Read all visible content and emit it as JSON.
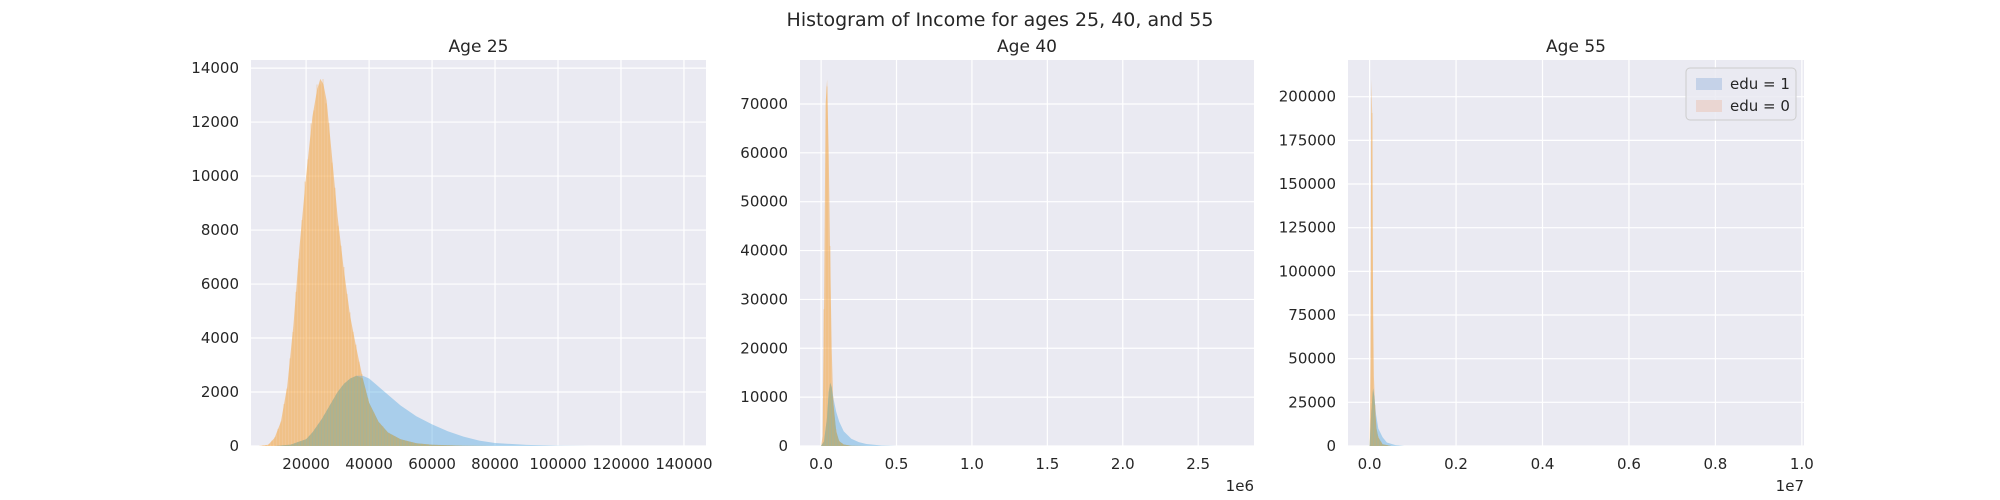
{
  "figure": {
    "title": "Histogram of Income for ages 25, 40, and 55"
  },
  "colors": {
    "background": "#ffffff",
    "plot_bg": "#eaeaf2",
    "grid": "#ffffff",
    "edu0": "#f4a84a",
    "edu1": "#5aaee3",
    "overlap": "#a8b08a",
    "legend_edu1": "#c5d2e8",
    "legend_edu0": "#ead6d2",
    "text": "#262626"
  },
  "legend": {
    "placement": "upper right",
    "entries": [
      {
        "label": "edu = 1",
        "key": "edu1"
      },
      {
        "label": "edu = 0",
        "key": "edu0"
      }
    ]
  },
  "chart_data": [
    {
      "type": "bar",
      "title": "Age 25",
      "xlabel": "",
      "ylabel": "",
      "xlim": [
        2500,
        147000
      ],
      "ylim": [
        0,
        14300
      ],
      "xticks": [
        20000,
        40000,
        60000,
        80000,
        100000,
        120000,
        140000
      ],
      "xtick_labels": [
        "20000",
        "40000",
        "60000",
        "80000",
        "100000",
        "120000",
        "140000"
      ],
      "yticks": [
        0,
        2000,
        4000,
        6000,
        8000,
        10000,
        12000,
        14000
      ],
      "ytick_labels": [
        "0",
        "2000",
        "4000",
        "6000",
        "8000",
        "10000",
        "12000",
        "14000"
      ],
      "offset_label": "",
      "grid": true,
      "legend": false,
      "series": [
        {
          "key": "edu0",
          "x": [
            5000,
            8000,
            10000,
            12000,
            14000,
            16000,
            18000,
            20000,
            22000,
            23500,
            24500,
            25500,
            26500,
            28000,
            30000,
            32000,
            34000,
            36000,
            38000,
            40000,
            43000,
            46000,
            50000,
            55000,
            60000,
            70000,
            80000
          ],
          "y": [
            0,
            50,
            300,
            900,
            2200,
            4500,
            7500,
            10000,
            12200,
            13200,
            13600,
            13400,
            12800,
            11000,
            8500,
            6500,
            4800,
            3600,
            2500,
            1600,
            900,
            500,
            250,
            100,
            50,
            10,
            0
          ]
        },
        {
          "key": "edu1",
          "x": [
            10000,
            15000,
            20000,
            22000,
            25000,
            28000,
            30000,
            32000,
            34000,
            36000,
            38000,
            40000,
            42000,
            45000,
            50000,
            55000,
            60000,
            65000,
            70000,
            75000,
            80000,
            90000,
            100000,
            110000
          ],
          "y": [
            0,
            50,
            250,
            500,
            1000,
            1600,
            2000,
            2300,
            2500,
            2600,
            2600,
            2500,
            2300,
            2000,
            1500,
            1100,
            800,
            550,
            350,
            200,
            110,
            40,
            10,
            0
          ]
        }
      ]
    },
    {
      "type": "bar",
      "title": "Age 40",
      "xlabel": "",
      "ylabel": "",
      "xlim": [
        -140000,
        2870000
      ],
      "ylim": [
        0,
        79000
      ],
      "xticks": [
        0,
        500000,
        1000000,
        1500000,
        2000000,
        2500000
      ],
      "xtick_labels": [
        "0.0",
        "0.5",
        "1.0",
        "1.5",
        "2.0",
        "2.5"
      ],
      "yticks": [
        0,
        10000,
        20000,
        30000,
        40000,
        50000,
        60000,
        70000
      ],
      "ytick_labels": [
        "0",
        "10000",
        "20000",
        "30000",
        "40000",
        "50000",
        "60000",
        "70000"
      ],
      "offset_label": "1e6",
      "grid": true,
      "legend": false,
      "series": [
        {
          "key": "edu0",
          "x": [
            0,
            10000,
            20000,
            30000,
            40000,
            50000,
            60000,
            70000,
            80000,
            100000,
            120000,
            150000,
            200000,
            300000
          ],
          "y": [
            0,
            2000,
            30000,
            70000,
            75000,
            60000,
            38000,
            20000,
            9000,
            3000,
            1000,
            300,
            50,
            0
          ]
        },
        {
          "key": "edu1",
          "x": [
            0,
            20000,
            40000,
            50000,
            60000,
            70000,
            80000,
            100000,
            120000,
            150000,
            200000,
            250000,
            300000,
            400000,
            500000
          ],
          "y": [
            0,
            1000,
            6000,
            11000,
            13000,
            12000,
            10000,
            7000,
            5000,
            3000,
            1500,
            800,
            400,
            100,
            0
          ]
        }
      ]
    },
    {
      "type": "bar",
      "title": "Age 55",
      "xlabel": "",
      "ylabel": "",
      "xlim": [
        -500000,
        10050000
      ],
      "ylim": [
        0,
        221000
      ],
      "xticks": [
        0,
        2000000,
        4000000,
        6000000,
        8000000,
        10000000
      ],
      "xtick_labels": [
        "0.0",
        "0.2",
        "0.4",
        "0.6",
        "0.8",
        "1.0"
      ],
      "yticks": [
        0,
        25000,
        50000,
        75000,
        100000,
        125000,
        150000,
        175000,
        200000
      ],
      "ytick_labels": [
        "0",
        "25000",
        "50000",
        "75000",
        "100000",
        "125000",
        "150000",
        "175000",
        "200000"
      ],
      "offset_label": "1e7",
      "grid": true,
      "legend": true,
      "series": [
        {
          "key": "edu0",
          "x": [
            0,
            20000,
            40000,
            60000,
            80000,
            100000,
            130000,
            160000,
            200000,
            300000,
            500000
          ],
          "y": [
            0,
            50000,
            210000,
            190000,
            80000,
            40000,
            20000,
            10000,
            5000,
            1000,
            0
          ]
        },
        {
          "key": "edu1",
          "x": [
            0,
            40000,
            80000,
            110000,
            150000,
            200000,
            300000,
            400000,
            600000,
            800000
          ],
          "y": [
            0,
            20000,
            33000,
            28000,
            18000,
            10000,
            5000,
            2000,
            500,
            0
          ]
        }
      ]
    }
  ]
}
